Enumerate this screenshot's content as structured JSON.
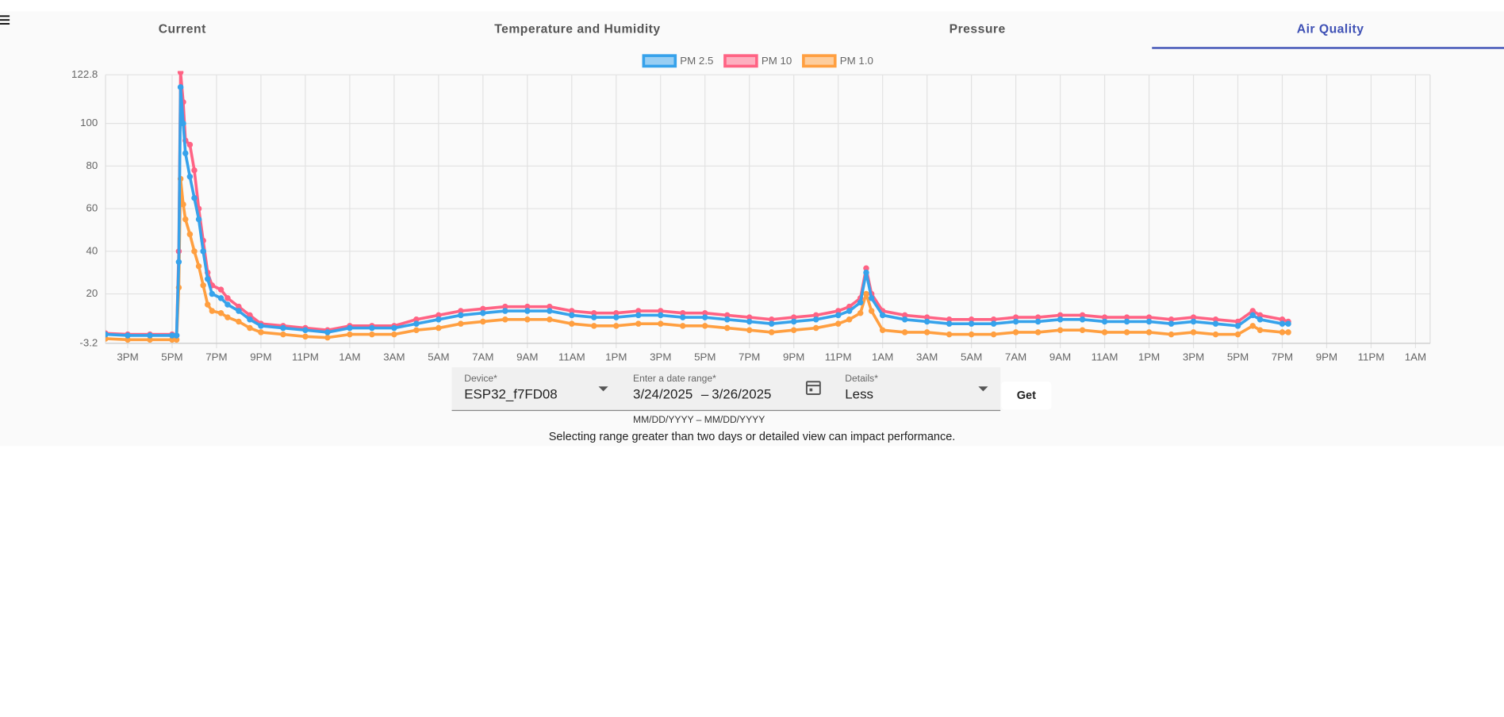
{
  "tabs": [
    "Current",
    "Temperature and Humidity",
    "Pressure",
    "Air Quality"
  ],
  "active_tab": 3,
  "chart_data": {
    "type": "line",
    "x": [
      14,
      15,
      16,
      17,
      17.2,
      17.3,
      17.38,
      17.5,
      17.6,
      17.8,
      18,
      18.2,
      18.4,
      18.6,
      18.8,
      19.2,
      19.5,
      20,
      20.5,
      21,
      22,
      23,
      24,
      25,
      26,
      27,
      28,
      29,
      30,
      31,
      32,
      33,
      34,
      35,
      36,
      37,
      38,
      39,
      40,
      41,
      42,
      43,
      44,
      45,
      46,
      47,
      47.5,
      48,
      48.26,
      48.5,
      49,
      50,
      51,
      52,
      53,
      54,
      55,
      56,
      57,
      58,
      59,
      60,
      61,
      62,
      63,
      64,
      65,
      65.67,
      66,
      67,
      67.27
    ],
    "series": [
      {
        "name": "PM 2.5",
        "color": "#36a2eb",
        "values": [
          1,
          0.5,
          0.5,
          0.5,
          0.5,
          35,
          117,
          100,
          86,
          75,
          65,
          55,
          40,
          27,
          20,
          18,
          15,
          12,
          8,
          5,
          4,
          3,
          2,
          4,
          4,
          4,
          6,
          8,
          10,
          11,
          12,
          12,
          12,
          10,
          9,
          9,
          10,
          10,
          9,
          9,
          8,
          7,
          6,
          7,
          8,
          10,
          12,
          16,
          30,
          18,
          10,
          8,
          7,
          6,
          6,
          6,
          7,
          7,
          8,
          8,
          7,
          7,
          7,
          6,
          7,
          6,
          5,
          10,
          8,
          6,
          6
        ]
      },
      {
        "name": "PM 10",
        "color": "#ff6384",
        "values": [
          1.5,
          1,
          1,
          1,
          0.5,
          40,
          124,
          110,
          92,
          90,
          78,
          60,
          45,
          30,
          24,
          22,
          18,
          14,
          10,
          6,
          5,
          4,
          3,
          5,
          5,
          5,
          8,
          10,
          12,
          13,
          14,
          14,
          14,
          12,
          11,
          11,
          12,
          12,
          11,
          11,
          10,
          9,
          8,
          9,
          10,
          12,
          14,
          18,
          32,
          20,
          12,
          10,
          9,
          8,
          8,
          8,
          9,
          9,
          10,
          10,
          9,
          9,
          9,
          8,
          9,
          8,
          7,
          12,
          10,
          8,
          7
        ]
      },
      {
        "name": "PM 1.0",
        "color": "#ff9f40",
        "values": [
          -1,
          -1.5,
          -1.5,
          -1.5,
          -1.5,
          23,
          74,
          62,
          55,
          48,
          40,
          33,
          24,
          15,
          12,
          11,
          9,
          7,
          4,
          2,
          1,
          0,
          -0.5,
          1,
          1,
          1,
          3,
          4,
          6,
          7,
          8,
          8,
          8,
          6,
          5,
          5,
          6,
          6,
          5,
          5,
          4,
          3,
          2,
          3,
          4,
          6,
          8,
          11,
          20,
          12,
          3,
          2,
          2,
          1,
          1,
          1,
          2,
          2,
          3,
          3,
          2,
          2,
          2,
          1,
          2,
          1,
          1,
          5,
          3,
          2,
          2
        ]
      }
    ],
    "xlim": [
      14,
      73.66
    ],
    "xticks": [
      {
        "value": 15,
        "label": "3PM"
      },
      {
        "value": 17,
        "label": "5PM"
      },
      {
        "value": 19,
        "label": "7PM"
      },
      {
        "value": 21,
        "label": "9PM"
      },
      {
        "value": 23,
        "label": "11PM"
      },
      {
        "value": 25,
        "label": "1AM"
      },
      {
        "value": 27,
        "label": "3AM"
      },
      {
        "value": 29,
        "label": "5AM"
      },
      {
        "value": 31,
        "label": "7AM"
      },
      {
        "value": 33,
        "label": "9AM"
      },
      {
        "value": 35,
        "label": "11AM"
      },
      {
        "value": 37,
        "label": "1PM"
      },
      {
        "value": 39,
        "label": "3PM"
      },
      {
        "value": 41,
        "label": "5PM"
      },
      {
        "value": 43,
        "label": "7PM"
      },
      {
        "value": 45,
        "label": "9PM"
      },
      {
        "value": 47,
        "label": "11PM"
      },
      {
        "value": 49,
        "label": "1AM"
      },
      {
        "value": 51,
        "label": "3AM"
      },
      {
        "value": 53,
        "label": "5AM"
      },
      {
        "value": 55,
        "label": "7AM"
      },
      {
        "value": 57,
        "label": "9AM"
      },
      {
        "value": 59,
        "label": "11AM"
      },
      {
        "value": 61,
        "label": "1PM"
      },
      {
        "value": 63,
        "label": "3PM"
      },
      {
        "value": 65,
        "label": "5PM"
      },
      {
        "value": 67,
        "label": "7PM"
      },
      {
        "value": 69,
        "label": "9PM"
      },
      {
        "value": 71,
        "label": "11PM"
      },
      {
        "value": 73,
        "label": "1AM"
      }
    ],
    "ylim": [
      -3.2,
      122.8
    ],
    "yticks": [
      -3.2,
      20,
      40,
      60,
      80,
      100,
      122.8
    ],
    "grid": true,
    "legend": "top"
  },
  "form": {
    "device": {
      "label": "Device*",
      "value": "ESP32_f7FD08"
    },
    "date_range": {
      "label": "Enter a date range*",
      "start": "3/24/2025",
      "separator": "–",
      "end": "3/26/2025",
      "hint": "MM/DD/YYYY – MM/DD/YYYY"
    },
    "details": {
      "label": "Details*",
      "value": "Less"
    },
    "button": "Get"
  },
  "note": "Selecting range greater than two days or detailed view can impact performance."
}
